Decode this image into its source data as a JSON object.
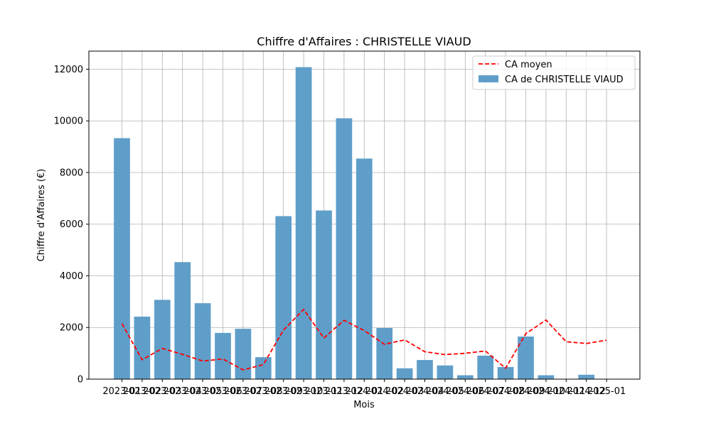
{
  "chart_data": {
    "type": "bar",
    "title": "Chiffre d'Affaires : CHRISTELLE VIAUD",
    "xlabel": "Mois",
    "ylabel": "Chiffre d'Affaires (€)",
    "ylim": [
      0,
      12700
    ],
    "yticks": [
      0,
      2000,
      4000,
      6000,
      8000,
      10000,
      12000
    ],
    "grid": true,
    "legend_position": "top-right",
    "categories": [
      "2023-01",
      "2023-02",
      "2023-03",
      "2023-04",
      "2023-05",
      "2023-06",
      "2023-07",
      "2023-08",
      "2023-09",
      "2023-10",
      "2023-11",
      "2023-12",
      "2024-01",
      "2024-02",
      "2024-03",
      "2024-04",
      "2024-05",
      "2024-06",
      "2024-07",
      "2024-08",
      "2024-09",
      "2024-10",
      "2024-11",
      "2024-12",
      "2025-01"
    ],
    "series": [
      {
        "name": "CA de CHRISTELLE VIAUD",
        "kind": "bar",
        "color": "#5f9ec9",
        "values": [
          9330,
          2420,
          3070,
          4530,
          2940,
          1790,
          1950,
          850,
          6310,
          12080,
          6530,
          10100,
          8540,
          1980,
          420,
          740,
          530,
          150,
          910,
          470,
          1650,
          150,
          0,
          170,
          0
        ]
      },
      {
        "name": "CA moyen",
        "kind": "line",
        "color": "#ff0000",
        "values": [
          2150,
          750,
          1190,
          960,
          700,
          780,
          360,
          560,
          1900,
          2700,
          1590,
          2280,
          1880,
          1350,
          1520,
          1060,
          950,
          1000,
          1090,
          420,
          1760,
          2290,
          1450,
          1380,
          1510
        ]
      }
    ]
  }
}
